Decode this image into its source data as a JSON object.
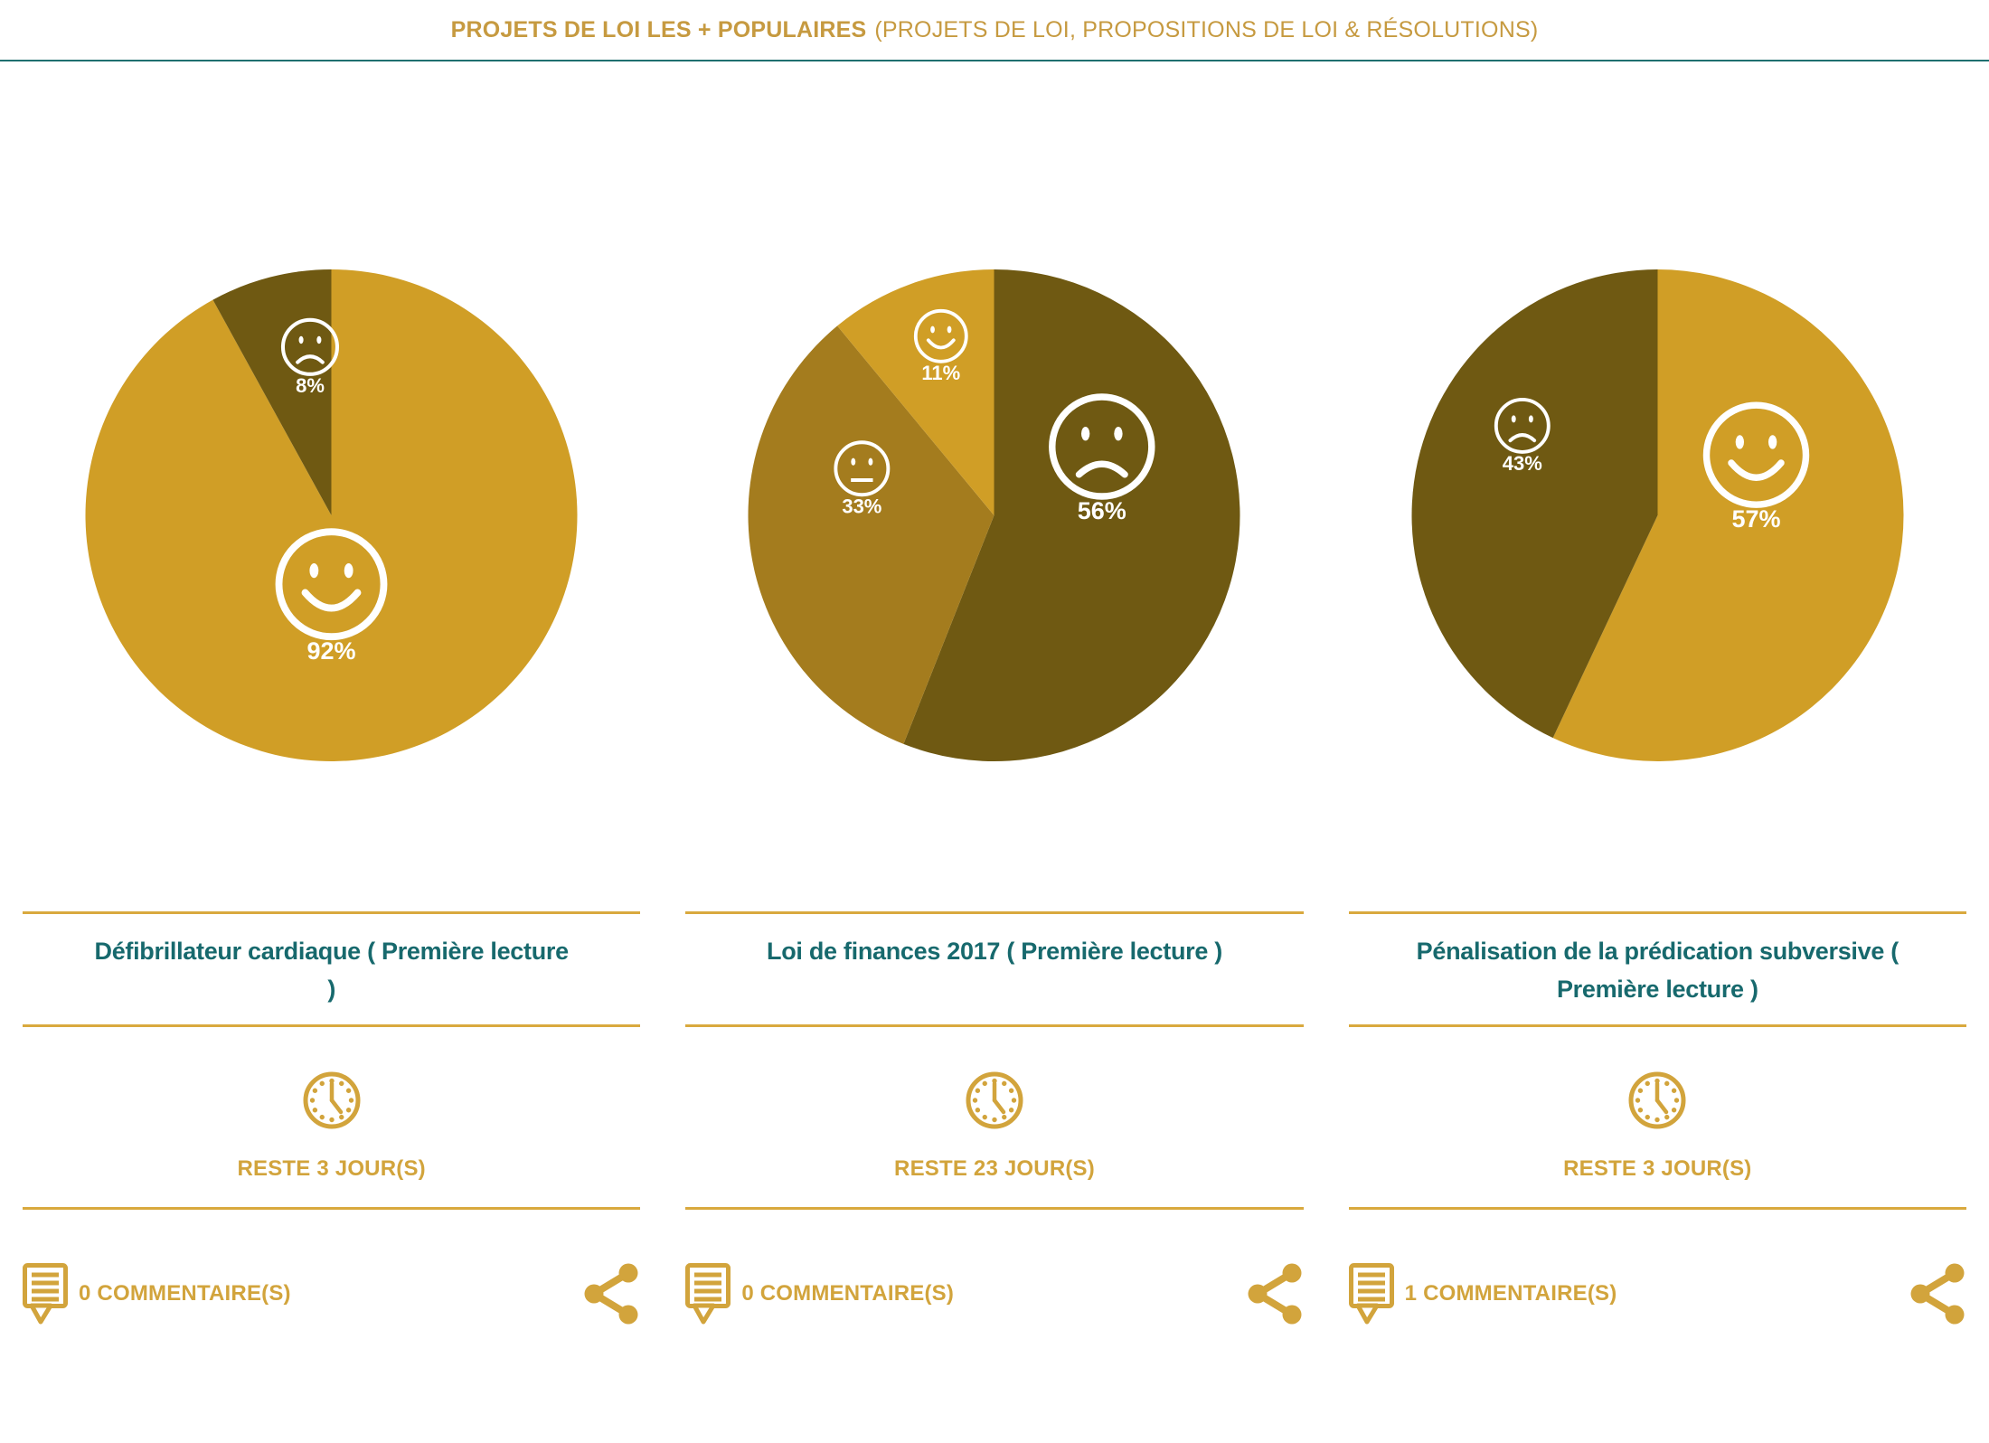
{
  "header": {
    "title_bold": "PROJETS DE LOI LES + POPULAIRES",
    "title_rest": "(PROJETS DE LOI, PROPOSITIONS DE LOI & RÉSOLUTIONS)"
  },
  "colors": {
    "pie_gold": "#D09E26",
    "pie_olive": "#A47C1E",
    "pie_dark_olive": "#6F5912",
    "gold_ui": "#D2A43C",
    "gold_rule": "#D9A93E",
    "teal_text": "#17696D",
    "teal_line": "#1F6F6F",
    "header_gold": "#C69A40",
    "pie_label_white": "#FFFFFF"
  },
  "cards": [
    {
      "title": "Défibrillateur cardiaque ( Première lecture )",
      "title_lines": [
        "Défibrillateur cardiaque ( Première lecture",
        ")"
      ],
      "days_remaining_label": "RESTE 3 JOUR(S)",
      "comments_label": "0 COMMENTAIRE(S)"
    },
    {
      "title": "Loi de finances 2017 ( Première lecture )",
      "title_lines": [
        "Loi de finances 2017 ( Première lecture )"
      ],
      "days_remaining_label": "RESTE 23 JOUR(S)",
      "comments_label": "0 COMMENTAIRE(S)"
    },
    {
      "title": "Pénalisation de la prédication subversive ( Première lecture )",
      "title_lines": [
        "Pénalisation de la prédication subversive (",
        "Première lecture )"
      ],
      "days_remaining_label": "RESTE 3 JOUR(S)",
      "comments_label": "1 COMMENTAIRE(S)"
    }
  ],
  "chart_data": [
    {
      "type": "pie",
      "title": "Défibrillateur cardiaque ( Première lecture )",
      "start_angle_deg": 0,
      "direction": "clockwise",
      "legend": false,
      "slices": [
        {
          "sentiment": "happy",
          "value_pct": 92,
          "label": "92%",
          "color": "#D09E26",
          "label_angle_deg": 180.0,
          "label_radius_frac": 0.28,
          "face_radius_px": 58
        },
        {
          "sentiment": "sad",
          "value_pct": 8,
          "label": "8%",
          "color": "#6F5912",
          "label_angle_deg": 352.8,
          "label_radius_frac": 0.69,
          "face_radius_px": 30
        }
      ]
    },
    {
      "type": "pie",
      "title": "Loi de finances 2017 ( Première lecture )",
      "start_angle_deg": 0,
      "direction": "clockwise",
      "legend": false,
      "slices": [
        {
          "sentiment": "sad",
          "value_pct": 56,
          "label": "56%",
          "color": "#6F5912",
          "label_angle_deg": 57.5,
          "label_radius_frac": 0.52,
          "face_radius_px": 55
        },
        {
          "sentiment": "neutral",
          "value_pct": 33,
          "label": "33%",
          "color": "#A47C1E",
          "label_angle_deg": 289.5,
          "label_radius_frac": 0.57,
          "face_radius_px": 29
        },
        {
          "sentiment": "happy",
          "value_pct": 11,
          "label": "11%",
          "color": "#D09E26",
          "label_angle_deg": 343.5,
          "label_radius_frac": 0.76,
          "face_radius_px": 28
        }
      ]
    },
    {
      "type": "pie",
      "title": "Pénalisation de la prédication subversive ( Première lecture )",
      "start_angle_deg": 0,
      "direction": "clockwise",
      "legend": false,
      "slices": [
        {
          "sentiment": "happy",
          "value_pct": 57,
          "label": "57%",
          "color": "#D09E26",
          "label_angle_deg": 58.5,
          "label_radius_frac": 0.47,
          "face_radius_px": 55
        },
        {
          "sentiment": "sad",
          "value_pct": 43,
          "label": "43%",
          "color": "#6F5912",
          "label_angle_deg": 303.5,
          "label_radius_frac": 0.66,
          "face_radius_px": 29
        }
      ]
    }
  ]
}
